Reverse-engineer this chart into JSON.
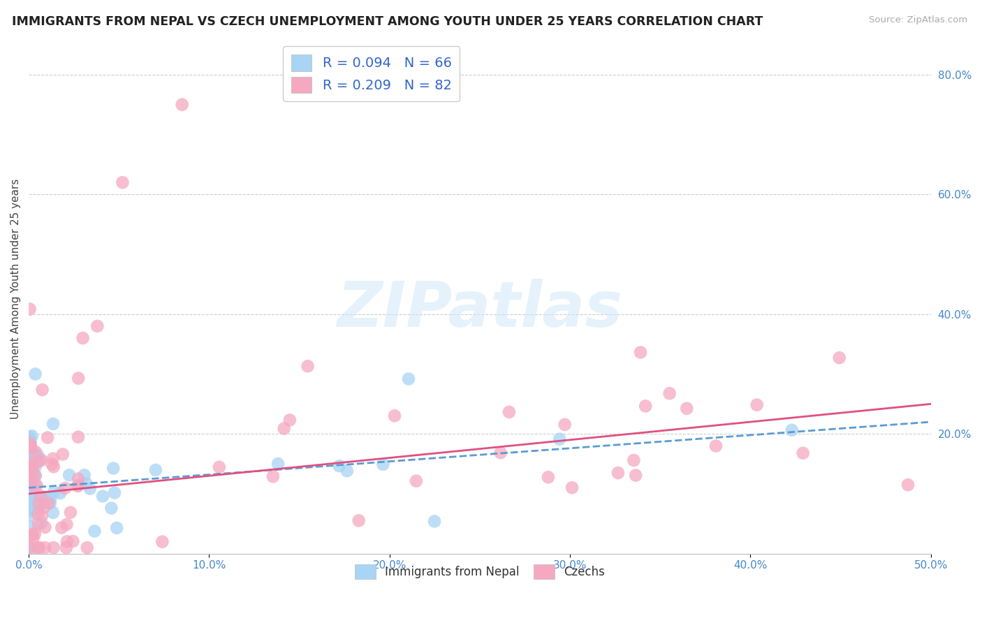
{
  "title": "IMMIGRANTS FROM NEPAL VS CZECH UNEMPLOYMENT AMONG YOUTH UNDER 25 YEARS CORRELATION CHART",
  "source": "Source: ZipAtlas.com",
  "ylabel": "Unemployment Among Youth under 25 years",
  "legend_blue": {
    "R": 0.094,
    "N": 66
  },
  "legend_pink": {
    "R": 0.209,
    "N": 82
  },
  "right_yticks": [
    "80.0%",
    "60.0%",
    "40.0%",
    "20.0%"
  ],
  "right_ytick_vals": [
    0.8,
    0.6,
    0.4,
    0.2
  ],
  "color_blue": "#a8d4f5",
  "color_pink": "#f5a8c0",
  "color_line_blue": "#5b9bd5",
  "color_line_pink": "#e05080",
  "background": "#FFFFFF",
  "xlim": [
    0.0,
    0.5
  ],
  "ylim": [
    0.0,
    0.85
  ],
  "xticks": [
    0.0,
    0.1,
    0.2,
    0.3,
    0.4,
    0.5
  ],
  "xtick_labels": [
    "0.0%",
    "10.0%",
    "20.0%",
    "30.0%",
    "40.0%",
    "50.0%"
  ],
  "nepal_x": [
    0.001,
    0.001,
    0.001,
    0.002,
    0.002,
    0.002,
    0.002,
    0.003,
    0.003,
    0.003,
    0.003,
    0.004,
    0.004,
    0.004,
    0.005,
    0.005,
    0.005,
    0.006,
    0.006,
    0.007,
    0.007,
    0.008,
    0.008,
    0.009,
    0.009,
    0.01,
    0.01,
    0.011,
    0.012,
    0.013,
    0.015,
    0.016,
    0.018,
    0.02,
    0.022,
    0.025,
    0.028,
    0.03,
    0.033,
    0.036,
    0.04,
    0.043,
    0.046,
    0.001,
    0.001,
    0.002,
    0.002,
    0.003,
    0.003,
    0.004,
    0.004,
    0.005,
    0.006,
    0.007,
    0.008,
    0.01,
    0.012,
    0.015,
    0.02,
    0.025,
    0.03,
    0.035,
    0.04,
    0.045,
    0.048,
    0.002
  ],
  "nepal_y": [
    0.1,
    0.12,
    0.08,
    0.14,
    0.11,
    0.09,
    0.15,
    0.13,
    0.1,
    0.12,
    0.07,
    0.11,
    0.13,
    0.09,
    0.12,
    0.1,
    0.14,
    0.11,
    0.09,
    0.13,
    0.1,
    0.12,
    0.11,
    0.1,
    0.13,
    0.11,
    0.14,
    0.12,
    0.13,
    0.11,
    0.14,
    0.12,
    0.15,
    0.14,
    0.16,
    0.15,
    0.17,
    0.16,
    0.18,
    0.17,
    0.19,
    0.2,
    0.21,
    0.16,
    0.2,
    0.18,
    0.22,
    0.08,
    0.17,
    0.15,
    0.19,
    0.21,
    0.13,
    0.16,
    0.14,
    0.18,
    0.2,
    0.22,
    0.21,
    0.23,
    0.22,
    0.24,
    0.23,
    0.25,
    0.24,
    0.3
  ],
  "czech_x": [
    0.001,
    0.001,
    0.001,
    0.001,
    0.002,
    0.002,
    0.002,
    0.002,
    0.002,
    0.003,
    0.003,
    0.003,
    0.003,
    0.004,
    0.004,
    0.004,
    0.005,
    0.005,
    0.005,
    0.006,
    0.006,
    0.007,
    0.007,
    0.008,
    0.008,
    0.009,
    0.01,
    0.011,
    0.012,
    0.013,
    0.015,
    0.016,
    0.018,
    0.02,
    0.022,
    0.025,
    0.028,
    0.03,
    0.033,
    0.036,
    0.04,
    0.043,
    0.046,
    0.05,
    0.001,
    0.002,
    0.003,
    0.004,
    0.005,
    0.006,
    0.007,
    0.008,
    0.009,
    0.01,
    0.012,
    0.015,
    0.018,
    0.02,
    0.025,
    0.03,
    0.035,
    0.04,
    0.045,
    0.05,
    0.003,
    0.005,
    0.008,
    0.01,
    0.015,
    0.02,
    0.025,
    0.03,
    0.035,
    0.04,
    0.045,
    0.05,
    0.008,
    0.015,
    0.025,
    0.04,
    0.01,
    0.02
  ],
  "czech_y": [
    0.1,
    0.08,
    0.14,
    0.12,
    0.11,
    0.09,
    0.15,
    0.13,
    0.07,
    0.12,
    0.1,
    0.16,
    0.08,
    0.11,
    0.13,
    0.09,
    0.12,
    0.1,
    0.14,
    0.11,
    0.09,
    0.13,
    0.1,
    0.12,
    0.14,
    0.11,
    0.13,
    0.14,
    0.12,
    0.15,
    0.14,
    0.16,
    0.15,
    0.17,
    0.16,
    0.18,
    0.17,
    0.19,
    0.2,
    0.18,
    0.21,
    0.2,
    0.22,
    0.24,
    0.62,
    0.74,
    0.35,
    0.38,
    0.42,
    0.36,
    0.25,
    0.3,
    0.28,
    0.33,
    0.2,
    0.22,
    0.4,
    0.19,
    0.21,
    0.17,
    0.08,
    0.15,
    0.13,
    0.14,
    0.45,
    0.26,
    0.31,
    0.23,
    0.16,
    0.18,
    0.12,
    0.1,
    0.08,
    0.13,
    0.09,
    0.11,
    0.07,
    0.06,
    0.08,
    0.07,
    0.2,
    0.22
  ]
}
